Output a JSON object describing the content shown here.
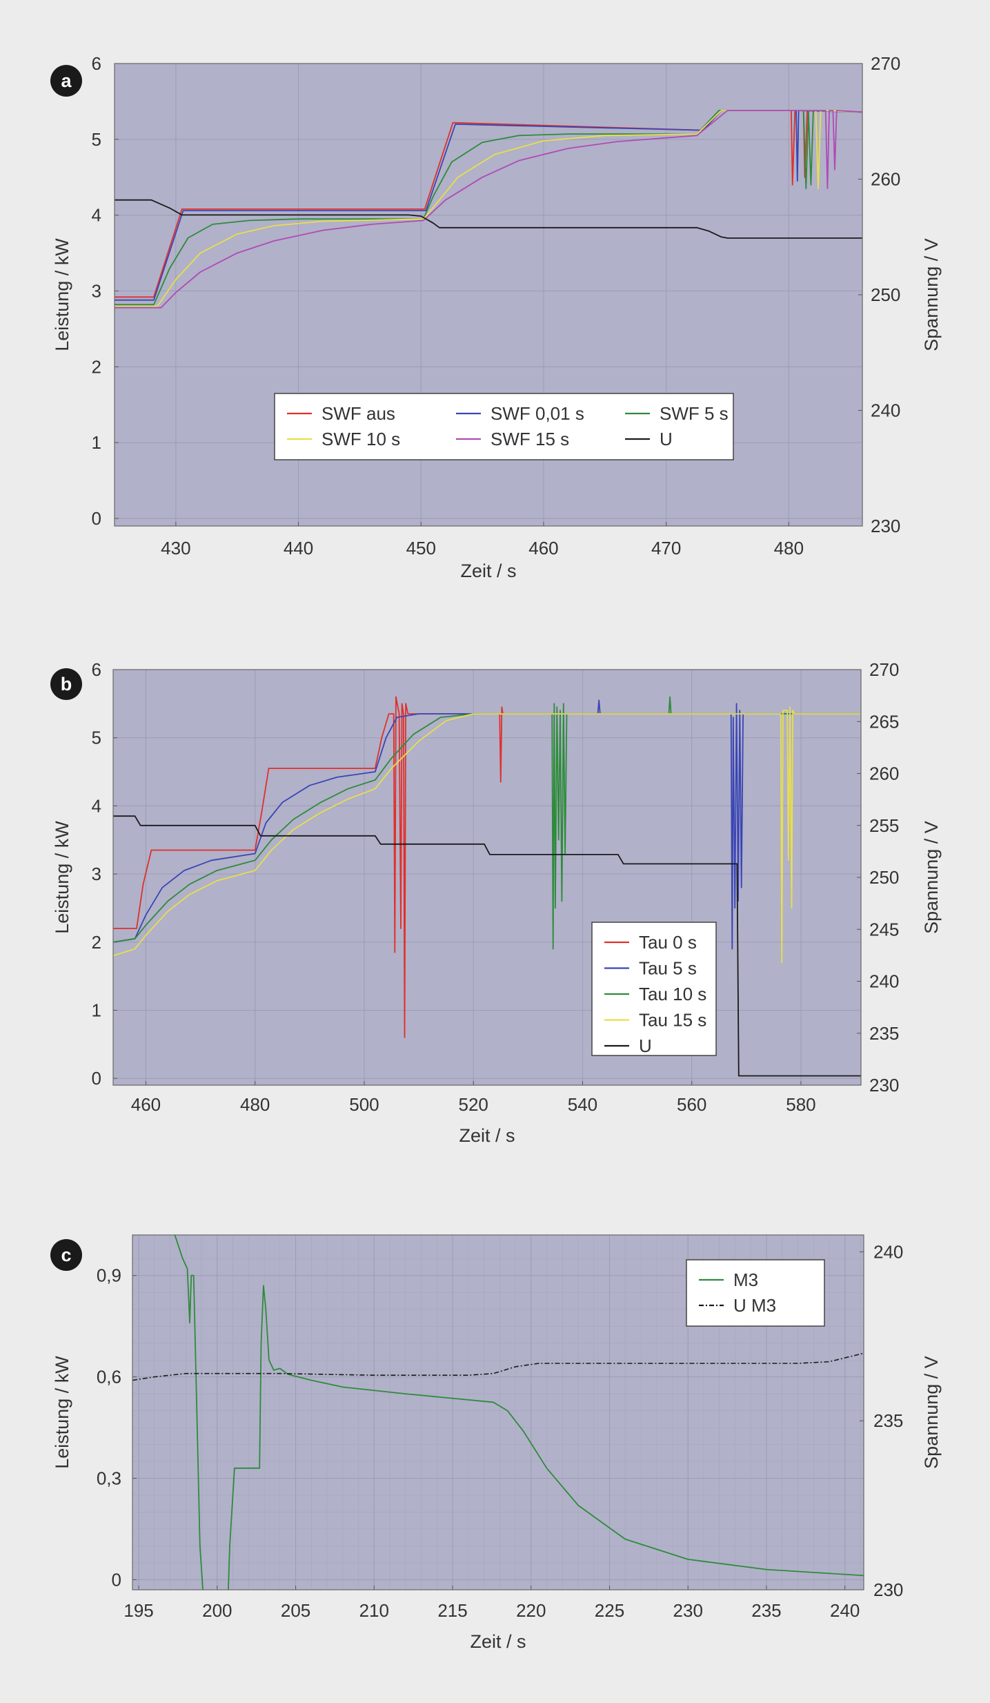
{
  "colors": {
    "background": "#ececec",
    "plot_background": "#b1b1c9",
    "grid": "#9c9cb6",
    "badge": "#1a1a1a",
    "red": "#e0302a",
    "blue": "#3a45b4",
    "green": "#2e8b3a",
    "yellow": "#e8df4a",
    "magenta": "#b04ab4",
    "black": "#1a1a1a"
  },
  "chart_data": [
    {
      "panel": "a",
      "type": "line",
      "xlabel": "Zeit / s",
      "ylabel": "Leistung / kW",
      "y2label": "Spannung / V",
      "xlim": [
        425,
        486
      ],
      "ylim": [
        -0.1,
        6
      ],
      "y2lim": [
        230,
        270
      ],
      "xticks": [
        "430",
        "440",
        "450",
        "460",
        "470",
        "480"
      ],
      "yticks": [
        "0",
        "1",
        "2",
        "3",
        "4",
        "5",
        "6"
      ],
      "y2ticks": [
        "230",
        "240",
        "250",
        "260",
        "270"
      ],
      "legend_position": "center",
      "legend": [
        {
          "name": "SWF aus",
          "color": "red"
        },
        {
          "name": "SWF 0,01 s",
          "color": "blue"
        },
        {
          "name": "SWF 5 s",
          "color": "green"
        },
        {
          "name": "SWF 10 s",
          "color": "yellow"
        },
        {
          "name": "SWF 15 s",
          "color": "magenta"
        },
        {
          "name": "U",
          "color": "black"
        }
      ],
      "series": [
        {
          "name": "SWF aus",
          "color": "red",
          "axis": "left",
          "x": [
            425,
            428.2,
            430.5,
            450.3,
            452.6,
            473,
            474.5,
            480.2,
            480.3,
            480.5,
            480.7,
            481.2,
            481.3,
            481.5,
            486
          ],
          "y": [
            2.92,
            2.92,
            4.08,
            4.08,
            5.22,
            5.12,
            5.38,
            5.38,
            4.4,
            5.38,
            5.38,
            5.38,
            4.5,
            5.38,
            5.36
          ]
        },
        {
          "name": "SWF 0,01 s",
          "color": "blue",
          "axis": "left",
          "x": [
            425,
            428.2,
            430.6,
            450.4,
            452.8,
            473,
            474.5,
            480.6,
            480.7,
            480.8,
            486
          ],
          "y": [
            2.88,
            2.88,
            4.06,
            4.06,
            5.2,
            5.12,
            5.38,
            5.38,
            4.45,
            5.38,
            5.36
          ]
        },
        {
          "name": "SWF 5 s",
          "color": "green",
          "axis": "left",
          "x": [
            425,
            428.2,
            429.5,
            431,
            433,
            436,
            440,
            450.2,
            451,
            452.5,
            455,
            458,
            462,
            472.5,
            474.3,
            481.2,
            481.4,
            481.6,
            481.8,
            482,
            486
          ],
          "y": [
            2.82,
            2.82,
            3.3,
            3.7,
            3.88,
            3.93,
            3.95,
            3.95,
            4.25,
            4.7,
            4.96,
            5.05,
            5.07,
            5.07,
            5.38,
            5.38,
            4.35,
            5.38,
            4.4,
            5.38,
            5.36
          ]
        },
        {
          "name": "SWF 10 s",
          "color": "yellow",
          "axis": "left",
          "x": [
            425,
            428.5,
            430,
            432,
            435,
            438,
            442,
            450.2,
            451,
            453,
            456,
            460,
            465,
            472.5,
            474.5,
            482.2,
            482.4,
            482.6,
            486
          ],
          "y": [
            2.8,
            2.8,
            3.15,
            3.5,
            3.75,
            3.86,
            3.92,
            3.95,
            4.1,
            4.5,
            4.8,
            4.98,
            5.05,
            5.07,
            5.38,
            5.38,
            4.35,
            5.38,
            5.36
          ]
        },
        {
          "name": "SWF 15 s",
          "color": "magenta",
          "axis": "left",
          "x": [
            425,
            428.8,
            430,
            432,
            435,
            438,
            442,
            446,
            450.2,
            452,
            455,
            458,
            462,
            466,
            472.5,
            475,
            483,
            483.15,
            483.3,
            483.6,
            483.75,
            483.9,
            486
          ],
          "y": [
            2.78,
            2.78,
            2.98,
            3.25,
            3.5,
            3.66,
            3.8,
            3.88,
            3.93,
            4.2,
            4.5,
            4.72,
            4.88,
            4.97,
            5.05,
            5.38,
            5.38,
            4.35,
            5.38,
            5.38,
            4.6,
            5.38,
            5.36
          ]
        },
        {
          "name": "U",
          "color": "black",
          "axis": "right",
          "x": [
            425,
            428,
            429.5,
            430.5,
            449,
            450,
            451,
            451.5,
            472.5,
            473.5,
            474.5,
            475,
            486
          ],
          "y": [
            258.2,
            258.2,
            257.5,
            256.9,
            256.9,
            256.8,
            256.2,
            255.8,
            255.8,
            255.5,
            255,
            254.9,
            254.9
          ]
        }
      ]
    },
    {
      "panel": "b",
      "type": "line",
      "xlabel": "Zeit / s",
      "ylabel": "Leistung / kW",
      "y2label": "Spannung / V",
      "xlim": [
        454,
        591
      ],
      "ylim": [
        -0.1,
        6
      ],
      "y2lim": [
        230,
        270
      ],
      "xticks": [
        "460",
        "480",
        "500",
        "520",
        "540",
        "560",
        "580"
      ],
      "yticks": [
        "0",
        "1",
        "2",
        "3",
        "4",
        "5",
        "6"
      ],
      "y2ticks": [
        "230",
        "235",
        "240",
        "245",
        "250",
        "255",
        "260",
        "265",
        "270"
      ],
      "legend_position": "lower-right",
      "legend": [
        {
          "name": "Tau 0 s",
          "color": "red"
        },
        {
          "name": "Tau 5 s",
          "color": "blue"
        },
        {
          "name": "Tau 10 s",
          "color": "green"
        },
        {
          "name": "Tau 15 s",
          "color": "yellow"
        },
        {
          "name": "U",
          "color": "black"
        }
      ],
      "series": [
        {
          "name": "Tau 0 s",
          "color": "red",
          "axis": "left",
          "x": [
            454,
            458.3,
            459.5,
            461,
            480,
            481.2,
            482.5,
            502,
            503.2,
            504.5,
            505.4,
            505.6,
            505.8,
            506.4,
            506.7,
            506.9,
            507.2,
            507.4,
            507.6,
            508,
            524.8,
            525,
            525.2,
            525.4,
            591
          ],
          "y": [
            2.2,
            2.2,
            2.85,
            3.35,
            3.35,
            3.9,
            4.55,
            4.55,
            5.0,
            5.35,
            5.35,
            1.85,
            5.6,
            5.35,
            2.2,
            5.5,
            5.35,
            0.6,
            5.5,
            5.35,
            5.35,
            4.35,
            5.45,
            5.35,
            5.35
          ]
        },
        {
          "name": "Tau 5 s",
          "color": "blue",
          "axis": "left",
          "x": [
            454,
            458,
            460,
            463,
            467,
            472,
            480,
            482,
            485,
            490,
            495,
            502,
            504,
            506,
            510,
            520,
            542.8,
            543,
            543.2,
            567.2,
            567.4,
            567.6,
            567.9,
            568.2,
            568.5,
            568.8,
            569.1,
            569.4,
            591
          ],
          "y": [
            2.0,
            2.05,
            2.4,
            2.8,
            3.05,
            3.2,
            3.3,
            3.75,
            4.05,
            4.3,
            4.42,
            4.5,
            5.0,
            5.3,
            5.35,
            5.35,
            5.35,
            5.55,
            5.35,
            5.35,
            1.9,
            5.3,
            2.5,
            5.5,
            2.6,
            5.4,
            2.8,
            5.35,
            5.35
          ]
        },
        {
          "name": "Tau 10 s",
          "color": "green",
          "axis": "left",
          "x": [
            454,
            458,
            460,
            464,
            468,
            473,
            480,
            483,
            487,
            492,
            497,
            502,
            505,
            509,
            514,
            520,
            534.4,
            534.6,
            534.8,
            535,
            535.3,
            535.6,
            535.9,
            536.2,
            536.5,
            536.8,
            537.1,
            555.8,
            556,
            556.2,
            591
          ],
          "y": [
            2.0,
            2.05,
            2.25,
            2.6,
            2.85,
            3.05,
            3.2,
            3.5,
            3.8,
            4.05,
            4.25,
            4.38,
            4.7,
            5.05,
            5.3,
            5.35,
            5.35,
            1.9,
            5.5,
            2.5,
            5.45,
            3.5,
            5.4,
            2.6,
            5.5,
            3.3,
            5.35,
            5.35,
            5.6,
            5.35,
            5.35
          ]
        },
        {
          "name": "Tau 15 s",
          "color": "yellow",
          "axis": "left",
          "x": [
            454,
            458,
            460,
            464,
            468,
            473,
            480,
            483,
            487,
            492,
            497,
            502,
            505,
            510,
            515,
            520,
            525,
            576.3,
            576.5,
            576.7,
            577.5,
            577.7,
            578,
            578.3,
            578.5,
            578.8,
            591
          ],
          "y": [
            1.8,
            1.9,
            2.1,
            2.45,
            2.7,
            2.9,
            3.05,
            3.35,
            3.65,
            3.9,
            4.1,
            4.25,
            4.55,
            4.95,
            5.25,
            5.35,
            5.35,
            5.35,
            1.7,
            5.4,
            5.4,
            3.2,
            5.45,
            2.5,
            5.4,
            5.35,
            5.35
          ]
        },
        {
          "name": "U",
          "color": "black",
          "axis": "right",
          "x": [
            454,
            458,
            459,
            480,
            481,
            502,
            503,
            522,
            523,
            546.5,
            547.5,
            568.3,
            568.6,
            591
          ],
          "y": [
            255.9,
            255.9,
            255.0,
            255.0,
            254.0,
            254.0,
            253.2,
            253.2,
            252.2,
            252.2,
            251.3,
            251.3,
            230.9,
            230.9
          ]
        }
      ]
    },
    {
      "panel": "c",
      "type": "line",
      "xlabel": "Zeit / s",
      "ylabel": "Leistung / kW",
      "y2label": "Spannung / V",
      "xlim": [
        194.6,
        241.2
      ],
      "ylim": [
        -0.03,
        1.02
      ],
      "y2lim": [
        230,
        240.5
      ],
      "xticks": [
        "195",
        "200",
        "205",
        "210",
        "215",
        "220",
        "225",
        "230",
        "235",
        "240"
      ],
      "yticks": [
        "0",
        "0,3",
        "0,6",
        "0,9"
      ],
      "y2ticks": [
        "230",
        "235",
        "240"
      ],
      "legend_position": "top-right",
      "legend": [
        {
          "name": "M3",
          "color": "green",
          "dash": "solid"
        },
        {
          "name": "U M3",
          "color": "black",
          "dash": "dashdot"
        }
      ],
      "series": [
        {
          "name": "M3",
          "color": "green",
          "axis": "left",
          "x": [
            197.3,
            197.8,
            198.1,
            198.25,
            198.35,
            198.5,
            198.7,
            198.9,
            199.1,
            199.4,
            200.7,
            200.8,
            201.1,
            202.7,
            202.8,
            202.95,
            203.1,
            203.3,
            203.6,
            204.0,
            204.5,
            206,
            208,
            212,
            217.6,
            218.5,
            219.5,
            221,
            223,
            226,
            230,
            235,
            241.2
          ],
          "y": [
            1.02,
            0.95,
            0.92,
            0.76,
            0.9,
            0.9,
            0.5,
            0.1,
            -0.04,
            -0.04,
            -0.04,
            0.1,
            0.33,
            0.33,
            0.7,
            0.87,
            0.8,
            0.65,
            0.62,
            0.625,
            0.608,
            0.59,
            0.57,
            0.55,
            0.525,
            0.5,
            0.44,
            0.33,
            0.22,
            0.12,
            0.06,
            0.03,
            0.012
          ]
        },
        {
          "name": "U M3",
          "color": "black",
          "axis": "right",
          "dash": "dashdot",
          "x": [
            194.6,
            196,
            198,
            200,
            204,
            210,
            216,
            217.6,
            219,
            220.5,
            225,
            230,
            237,
            239,
            241.2
          ],
          "y": [
            236.2,
            236.3,
            236.4,
            236.4,
            236.4,
            236.35,
            236.35,
            236.4,
            236.6,
            236.7,
            236.7,
            236.7,
            236.7,
            236.75,
            237.0
          ]
        }
      ]
    }
  ]
}
